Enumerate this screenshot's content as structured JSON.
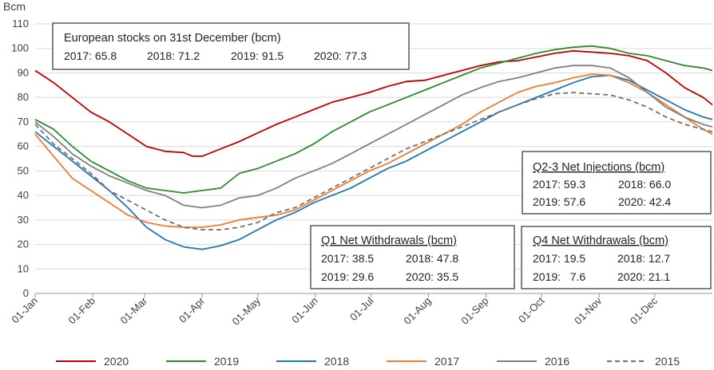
{
  "chart_data": {
    "type": "line",
    "ylabel": "Bcm",
    "ylim": [
      0,
      110
    ],
    "yticks": [
      0,
      10,
      20,
      30,
      40,
      50,
      60,
      70,
      80,
      90,
      100,
      110
    ],
    "x_axis": "day of year",
    "x_ticks": [
      {
        "label": "01-Jan",
        "day": 0
      },
      {
        "label": "01-Feb",
        "day": 31
      },
      {
        "label": "01-Mar",
        "day": 59
      },
      {
        "label": "01-Apr",
        "day": 90
      },
      {
        "label": "01-May",
        "day": 120
      },
      {
        "label": "01-Jun",
        "day": 151
      },
      {
        "label": "01-Jul",
        "day": 181
      },
      {
        "label": "01-Aug",
        "day": 212
      },
      {
        "label": "01-Sep",
        "day": 243
      },
      {
        "label": "01-Oct",
        "day": 273
      },
      {
        "label": "01-Nov",
        "day": 304
      },
      {
        "label": "01-Dec",
        "day": 334
      }
    ],
    "grid": true,
    "legend_position": "bottom",
    "series": [
      {
        "name": "2020",
        "color": "#c00000",
        "dash": false,
        "points": [
          [
            0,
            91
          ],
          [
            10,
            86
          ],
          [
            20,
            80
          ],
          [
            30,
            74
          ],
          [
            40,
            70
          ],
          [
            50,
            65
          ],
          [
            60,
            60
          ],
          [
            70,
            58
          ],
          [
            80,
            57.5
          ],
          [
            85,
            56
          ],
          [
            90,
            56
          ],
          [
            100,
            59
          ],
          [
            110,
            62
          ],
          [
            120,
            65.5
          ],
          [
            130,
            69
          ],
          [
            140,
            72
          ],
          [
            150,
            75
          ],
          [
            160,
            78
          ],
          [
            170,
            80
          ],
          [
            180,
            82
          ],
          [
            190,
            84.5
          ],
          [
            200,
            86.5
          ],
          [
            210,
            87
          ],
          [
            220,
            89
          ],
          [
            230,
            91
          ],
          [
            240,
            93
          ],
          [
            250,
            94.5
          ],
          [
            260,
            95
          ],
          [
            270,
            96.5
          ],
          [
            280,
            98
          ],
          [
            290,
            99
          ],
          [
            300,
            98.5
          ],
          [
            310,
            98
          ],
          [
            320,
            97
          ],
          [
            330,
            95
          ],
          [
            340,
            90
          ],
          [
            350,
            84
          ],
          [
            360,
            80
          ],
          [
            365,
            77
          ]
        ]
      },
      {
        "name": "2019",
        "color": "#2e8b2e",
        "dash": false,
        "points": [
          [
            0,
            71
          ],
          [
            10,
            67
          ],
          [
            20,
            60
          ],
          [
            30,
            54
          ],
          [
            40,
            50
          ],
          [
            50,
            46
          ],
          [
            60,
            43
          ],
          [
            70,
            42
          ],
          [
            80,
            41
          ],
          [
            90,
            42
          ],
          [
            100,
            43
          ],
          [
            105,
            46
          ],
          [
            110,
            49
          ],
          [
            120,
            51
          ],
          [
            130,
            54
          ],
          [
            140,
            57
          ],
          [
            150,
            61
          ],
          [
            160,
            66
          ],
          [
            170,
            70
          ],
          [
            180,
            74
          ],
          [
            190,
            77
          ],
          [
            200,
            80
          ],
          [
            210,
            83
          ],
          [
            220,
            86
          ],
          [
            230,
            89
          ],
          [
            240,
            92
          ],
          [
            250,
            94
          ],
          [
            260,
            96
          ],
          [
            270,
            98
          ],
          [
            280,
            99.5
          ],
          [
            290,
            100.5
          ],
          [
            300,
            101
          ],
          [
            310,
            100
          ],
          [
            320,
            98
          ],
          [
            330,
            97
          ],
          [
            340,
            95
          ],
          [
            350,
            93
          ],
          [
            360,
            92
          ],
          [
            365,
            91
          ]
        ]
      },
      {
        "name": "2018",
        "color": "#1f77b4",
        "dash": false,
        "points": [
          [
            0,
            66
          ],
          [
            10,
            60
          ],
          [
            20,
            54
          ],
          [
            30,
            48
          ],
          [
            40,
            42
          ],
          [
            50,
            35
          ],
          [
            60,
            27
          ],
          [
            70,
            22
          ],
          [
            80,
            19
          ],
          [
            90,
            18
          ],
          [
            100,
            19.5
          ],
          [
            110,
            22
          ],
          [
            120,
            26
          ],
          [
            130,
            30
          ],
          [
            140,
            33
          ],
          [
            150,
            37
          ],
          [
            160,
            40
          ],
          [
            170,
            43
          ],
          [
            180,
            47
          ],
          [
            190,
            51
          ],
          [
            200,
            54
          ],
          [
            210,
            58
          ],
          [
            220,
            62
          ],
          [
            230,
            66
          ],
          [
            240,
            70
          ],
          [
            250,
            74
          ],
          [
            260,
            77
          ],
          [
            270,
            80
          ],
          [
            280,
            83
          ],
          [
            290,
            86
          ],
          [
            300,
            88.5
          ],
          [
            310,
            89
          ],
          [
            320,
            87
          ],
          [
            330,
            83
          ],
          [
            340,
            79
          ],
          [
            350,
            75
          ],
          [
            360,
            72
          ],
          [
            365,
            71
          ]
        ]
      },
      {
        "name": "2017",
        "color": "#ed7d31",
        "dash": false,
        "points": [
          [
            0,
            65
          ],
          [
            10,
            56
          ],
          [
            20,
            47
          ],
          [
            30,
            42
          ],
          [
            40,
            37
          ],
          [
            50,
            32
          ],
          [
            60,
            29
          ],
          [
            70,
            27.5
          ],
          [
            80,
            27
          ],
          [
            90,
            27
          ],
          [
            100,
            28
          ],
          [
            110,
            30
          ],
          [
            120,
            31
          ],
          [
            130,
            32
          ],
          [
            140,
            34
          ],
          [
            150,
            38
          ],
          [
            160,
            42
          ],
          [
            170,
            46
          ],
          [
            180,
            50
          ],
          [
            190,
            53
          ],
          [
            200,
            57
          ],
          [
            210,
            61
          ],
          [
            220,
            65
          ],
          [
            230,
            69
          ],
          [
            240,
            74
          ],
          [
            250,
            78
          ],
          [
            260,
            82
          ],
          [
            270,
            84.5
          ],
          [
            280,
            86
          ],
          [
            290,
            88
          ],
          [
            300,
            89.5
          ],
          [
            310,
            89
          ],
          [
            320,
            86
          ],
          [
            330,
            82
          ],
          [
            340,
            77
          ],
          [
            350,
            72
          ],
          [
            360,
            67
          ],
          [
            365,
            65
          ]
        ]
      },
      {
        "name": "2016",
        "color": "#808080",
        "dash": false,
        "points": [
          [
            0,
            70
          ],
          [
            10,
            64
          ],
          [
            20,
            57
          ],
          [
            30,
            52
          ],
          [
            40,
            48
          ],
          [
            50,
            45
          ],
          [
            60,
            42
          ],
          [
            70,
            40
          ],
          [
            80,
            36
          ],
          [
            90,
            35
          ],
          [
            100,
            36
          ],
          [
            110,
            39
          ],
          [
            120,
            40
          ],
          [
            130,
            43
          ],
          [
            140,
            47
          ],
          [
            150,
            50
          ],
          [
            160,
            53
          ],
          [
            170,
            57
          ],
          [
            180,
            61
          ],
          [
            190,
            65
          ],
          [
            200,
            69
          ],
          [
            210,
            73
          ],
          [
            220,
            77
          ],
          [
            230,
            81
          ],
          [
            240,
            84
          ],
          [
            250,
            86.5
          ],
          [
            260,
            88
          ],
          [
            270,
            90
          ],
          [
            280,
            92
          ],
          [
            290,
            93
          ],
          [
            300,
            93
          ],
          [
            310,
            92
          ],
          [
            320,
            88
          ],
          [
            330,
            82
          ],
          [
            340,
            76
          ],
          [
            350,
            72
          ],
          [
            360,
            69
          ],
          [
            365,
            68
          ]
        ]
      },
      {
        "name": "2015",
        "color": "#707070",
        "dash": true,
        "points": [
          [
            0,
            69
          ],
          [
            10,
            61
          ],
          [
            20,
            55
          ],
          [
            30,
            49
          ],
          [
            40,
            42
          ],
          [
            50,
            38
          ],
          [
            60,
            34
          ],
          [
            70,
            30
          ],
          [
            80,
            27
          ],
          [
            90,
            26
          ],
          [
            100,
            26
          ],
          [
            110,
            27
          ],
          [
            120,
            29
          ],
          [
            130,
            33
          ],
          [
            140,
            35
          ],
          [
            150,
            39
          ],
          [
            160,
            43
          ],
          [
            170,
            47
          ],
          [
            180,
            51
          ],
          [
            190,
            55
          ],
          [
            200,
            59
          ],
          [
            210,
            62
          ],
          [
            220,
            65
          ],
          [
            230,
            68
          ],
          [
            240,
            71
          ],
          [
            250,
            74
          ],
          [
            260,
            77
          ],
          [
            270,
            79.5
          ],
          [
            280,
            81.5
          ],
          [
            290,
            82
          ],
          [
            300,
            81.5
          ],
          [
            310,
            81
          ],
          [
            320,
            79
          ],
          [
            330,
            76
          ],
          [
            340,
            72
          ],
          [
            350,
            69
          ],
          [
            360,
            67
          ],
          [
            365,
            66
          ]
        ]
      }
    ],
    "annotations": {
      "stocks": {
        "title": "European stocks on 31st December (bcm)",
        "line": [
          "2017: 65.8",
          "2018: 71.2",
          "2019: 91.5",
          "2020: 77.3"
        ]
      },
      "q1": {
        "title": "Q1 Net Withdrawals (bcm)",
        "row1": [
          "2017: 38.5",
          "2018: 47.8"
        ],
        "row2": [
          "2019: 29.6",
          "2020: 35.5"
        ]
      },
      "q23": {
        "title": "Q2-3 Net Injections (bcm)",
        "row1": [
          "2017: 59.3",
          "2018: 66.0"
        ],
        "row2": [
          "2019: 57.6",
          "2020: 42.4"
        ]
      },
      "q4": {
        "title": "Q4 Net Withdrawals (bcm)",
        "row1": [
          "2017: 19.5",
          "2018: 12.7"
        ],
        "row2": [
          "2019:   7.6",
          "2020: 21.1"
        ]
      }
    }
  }
}
